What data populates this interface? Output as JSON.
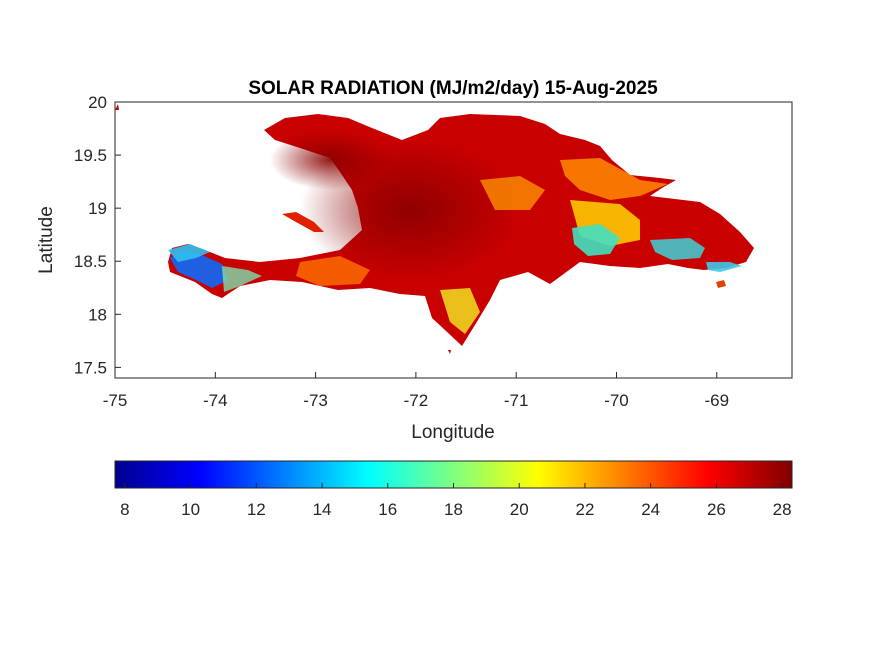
{
  "title": "SOLAR RADIATION (MJ/m2/day) 15-Aug-2025",
  "map": {
    "xlabel": "Longitude",
    "ylabel": "Latitude",
    "xlim": [
      -75,
      -68.25
    ],
    "ylim": [
      17.4,
      20
    ],
    "xticks": [
      "-75",
      "-74",
      "-73",
      "-72",
      "-71",
      "-70",
      "-69"
    ],
    "yticks": [
      "17.5",
      "18",
      "18.5",
      "19",
      "19.5",
      "20"
    ],
    "land_fill_color": "#c80000"
  },
  "colorbar": {
    "colormap": "jet",
    "range": [
      7.7,
      28.3
    ],
    "ticks": [
      "8",
      "10",
      "12",
      "14",
      "16",
      "18",
      "20",
      "22",
      "24",
      "26",
      "28"
    ]
  }
}
